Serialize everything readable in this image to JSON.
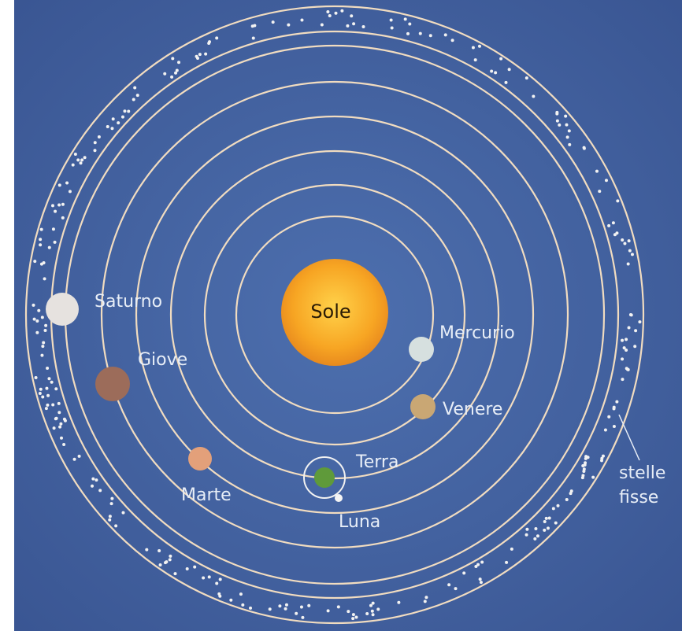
{
  "sun": {
    "label": "Sole"
  },
  "planets": [
    {
      "label": "Mercurio"
    },
    {
      "label": "Venere"
    },
    {
      "label": "Terra"
    },
    {
      "label": "Marte"
    },
    {
      "label": "Giove"
    },
    {
      "label": "Saturno"
    }
  ],
  "moon": {
    "label": "Luna"
  },
  "fixed_stars": {
    "label_lines": [
      "stelle",
      "fisse"
    ]
  }
}
